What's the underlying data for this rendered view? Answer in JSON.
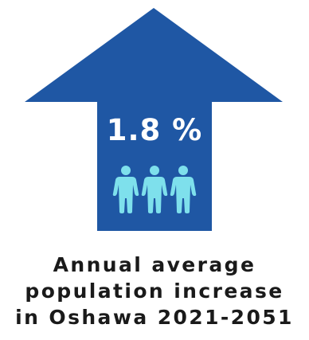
{
  "stat": {
    "value": "1.8 %"
  },
  "caption": {
    "line1": "Annual average",
    "line2": "population increase",
    "line3": "in Oshawa 2021-2051"
  },
  "icons": {
    "arrow": "up-arrow-icon",
    "people": "people-icon"
  },
  "colors": {
    "arrow": "#1f57a4",
    "people": "#7ee0ec",
    "caption": "#1a1a1a"
  }
}
